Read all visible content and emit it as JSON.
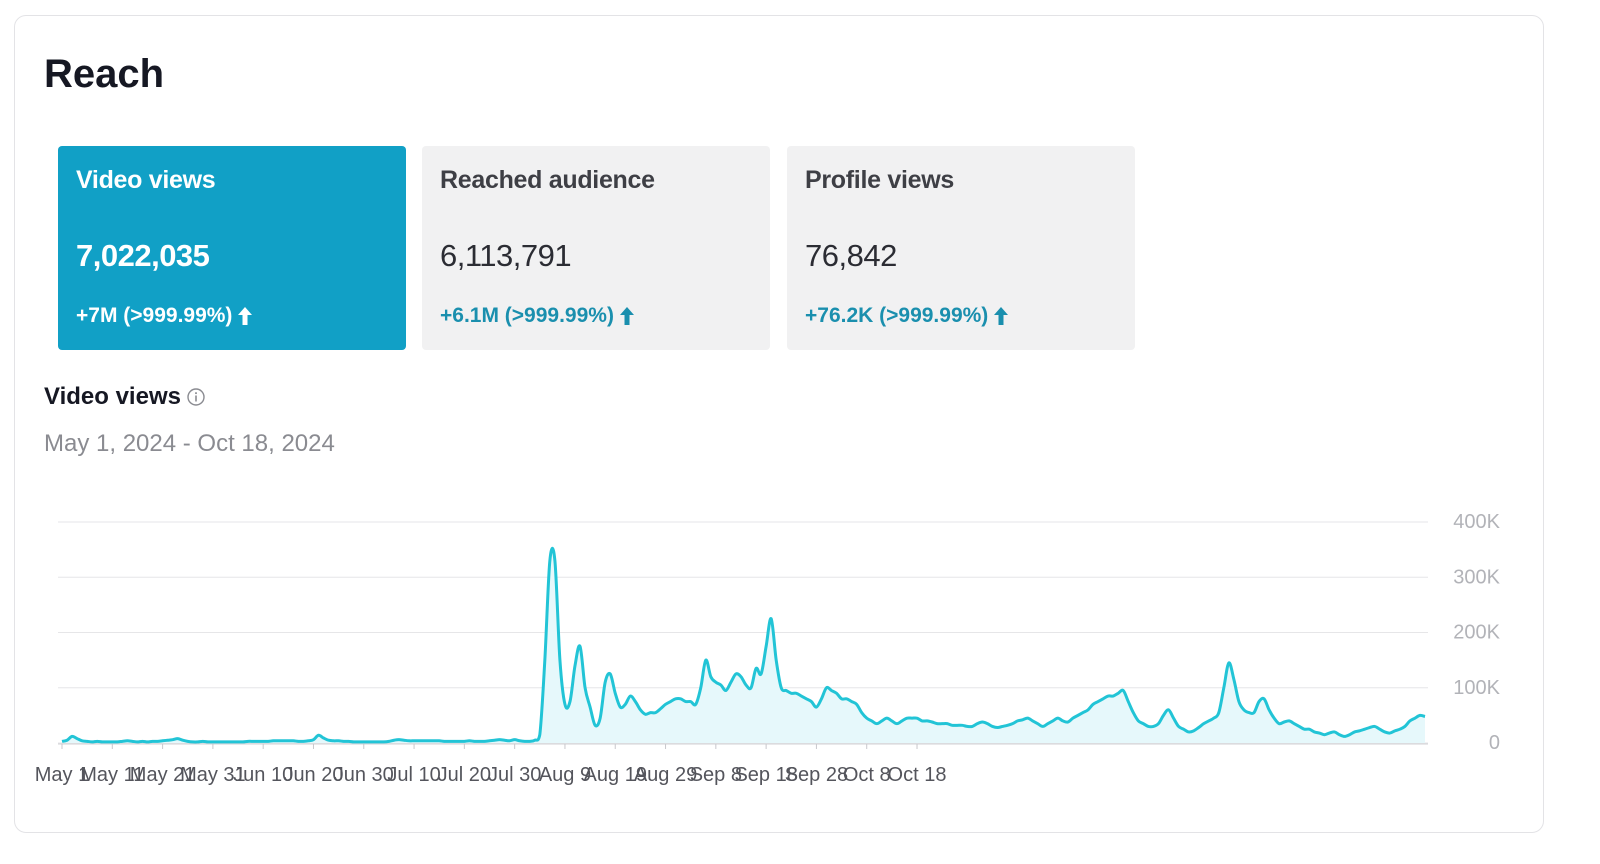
{
  "header": {
    "title": "Reach"
  },
  "metrics": [
    {
      "label": "Video views",
      "value": "7,022,035",
      "change": "+7M  (>999.99%)",
      "active": true
    },
    {
      "label": "Reached audience",
      "value": "6,113,791",
      "change": "+6.1M  (>999.99%)",
      "active": false
    },
    {
      "label": "Profile views",
      "value": "76,842",
      "change": "+76.2K  (>999.99%)",
      "active": false
    }
  ],
  "chart_section": {
    "title": "Video views",
    "date_range": "May 1, 2024 - Oct 18, 2024"
  },
  "colors": {
    "accent": "#11a0c6",
    "line": "#22c4d6",
    "area": "#e6f8fb",
    "grid": "#e6e6e8"
  },
  "chart_data": {
    "type": "area",
    "x_start": "2024-05-01",
    "x_tick_labels": [
      "May 1",
      "May 11",
      "May 21",
      "May 31",
      "Jun 10",
      "Jun 20",
      "Jun 30",
      "Jul 10",
      "Jul 20",
      "Jul 30",
      "Aug 9",
      "Aug 19",
      "Aug 29",
      "Sep 8",
      "Sep 18",
      "Sep 28",
      "Oct 8",
      "Oct 18"
    ],
    "y_tick_labels": [
      "400K",
      "300K",
      "200K",
      "100K",
      "0"
    ],
    "ylim": [
      0,
      400000
    ],
    "grid": true,
    "series": [
      {
        "values": [
          3000,
          5000,
          12000,
          8000,
          4000,
          3000,
          2000,
          3000,
          2000,
          2000,
          2000,
          2000,
          3000,
          4000,
          3000,
          2000,
          3000,
          2000,
          3000,
          3000,
          4000,
          5000,
          6000,
          8000,
          5000,
          3000,
          2000,
          2000,
          3000,
          2000,
          2000,
          2000,
          2000,
          2000,
          2000,
          2000,
          2000,
          3000,
          3000,
          3000,
          3000,
          3000,
          4000,
          4000,
          4000,
          4000,
          4000,
          3000,
          3000,
          4000,
          6000,
          14000,
          9000,
          5000,
          4000,
          4000,
          3000,
          3000,
          2000,
          2000,
          2000,
          2000,
          2000,
          2000,
          2000,
          3000,
          5000,
          6000,
          5000,
          4000,
          4000,
          4000,
          4000,
          4000,
          4000,
          4000,
          3000,
          3000,
          3000,
          3000,
          3000,
          4000,
          3000,
          3000,
          3000,
          4000,
          5000,
          6000,
          5000,
          4000,
          6000,
          4000,
          3000,
          3000,
          5000,
          15000,
          150000,
          330000,
          330000,
          150000,
          70000,
          75000,
          140000,
          175000,
          100000,
          65000,
          32000,
          45000,
          110000,
          125000,
          90000,
          65000,
          70000,
          85000,
          75000,
          60000,
          52000,
          55000,
          55000,
          62000,
          70000,
          75000,
          80000,
          80000,
          75000,
          75000,
          70000,
          100000,
          150000,
          120000,
          110000,
          105000,
          95000,
          110000,
          125000,
          120000,
          105000,
          100000,
          135000,
          125000,
          175000,
          225000,
          150000,
          100000,
          95000,
          90000,
          90000,
          85000,
          80000,
          75000,
          65000,
          80000,
          100000,
          95000,
          90000,
          80000,
          80000,
          75000,
          70000,
          55000,
          45000,
          40000,
          35000,
          40000,
          45000,
          40000,
          35000,
          40000,
          45000,
          45000,
          45000,
          40000,
          40000,
          38000,
          35000,
          35000,
          35000,
          32000,
          32000,
          32000,
          30000,
          30000,
          35000,
          38000,
          35000,
          30000,
          28000,
          30000,
          32000,
          35000,
          40000,
          42000,
          45000,
          40000,
          35000,
          30000,
          35000,
          40000,
          45000,
          40000,
          38000,
          45000,
          50000,
          55000,
          60000,
          70000,
          75000,
          80000,
          85000,
          85000,
          90000,
          95000,
          75000,
          55000,
          40000,
          35000,
          30000,
          30000,
          35000,
          50000,
          60000,
          45000,
          30000,
          25000,
          20000,
          22000,
          28000,
          35000,
          40000,
          45000,
          55000,
          100000,
          145000,
          115000,
          75000,
          60000,
          55000,
          55000,
          75000,
          80000,
          60000,
          45000,
          35000,
          38000,
          40000,
          35000,
          30000,
          25000,
          25000,
          20000,
          18000,
          15000,
          18000,
          20000,
          15000,
          12000,
          15000,
          20000,
          22000,
          25000,
          28000,
          30000,
          25000,
          20000,
          18000,
          22000,
          25000,
          30000,
          40000,
          45000,
          50000,
          48000
        ]
      }
    ]
  }
}
